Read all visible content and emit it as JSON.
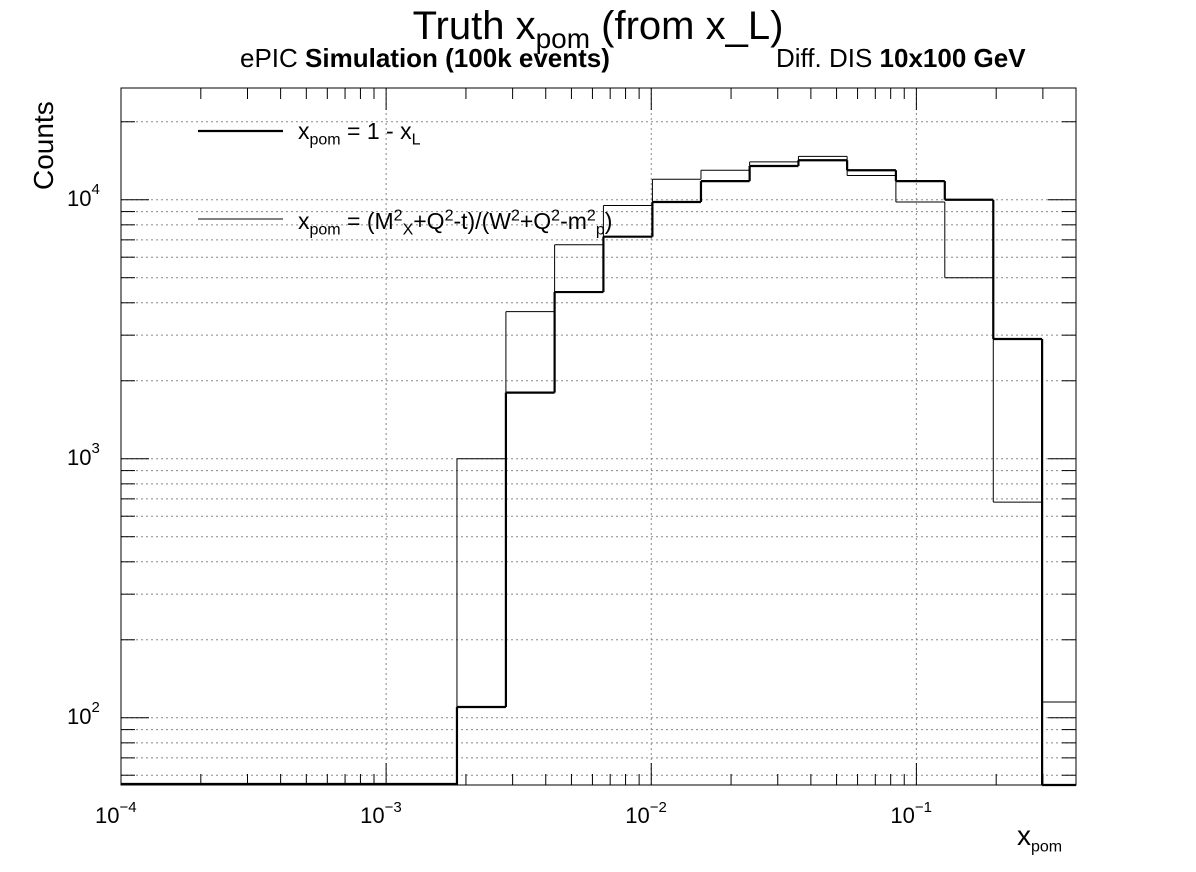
{
  "chart_data": {
    "type": "histogram",
    "title_main": "Truth x",
    "title_sub": "pom",
    "title_tail": " (from x_L)",
    "subtitle_left_normal": "ePIC ",
    "subtitle_left_bold": "Simulation (100k events)",
    "subtitle_right_normal": "Diff. DIS ",
    "subtitle_right_bold": "10x100 GeV",
    "ylabel": "Counts",
    "xlabel_main": "x",
    "xlabel_sub": "pom",
    "xscale": "log",
    "yscale": "log",
    "xlim": [
      0.0001,
      0.4
    ],
    "ylim": [
      55,
      27000
    ],
    "grid": true,
    "x_ticks": [
      {
        "base": "10",
        "exp": "−4"
      },
      {
        "base": "10",
        "exp": "−3"
      },
      {
        "base": "10",
        "exp": "−2"
      },
      {
        "base": "10",
        "exp": "−1"
      }
    ],
    "y_ticks": [
      {
        "base": "10",
        "exp": "2"
      },
      {
        "base": "10",
        "exp": "3"
      },
      {
        "base": "10",
        "exp": "4"
      }
    ],
    "bin_edges": [
      0.00185,
      0.00283,
      0.00432,
      0.0066,
      0.0101,
      0.0154,
      0.0235,
      0.0359,
      0.0548,
      0.0837,
      0.128,
      0.195,
      0.298,
      0.455
    ],
    "series": [
      {
        "name": "x_pom = 1 - x_L",
        "legend_parts": {
          "a": "x",
          "a_sub": "pom",
          "b": " = 1 - x",
          "b_sub": "L"
        },
        "line_width": "thick",
        "values": [
          110,
          1800,
          4400,
          7200,
          9800,
          11800,
          13500,
          14200,
          13000,
          11800,
          10000,
          2900,
          55
        ]
      },
      {
        "name": "x_pom = (M_X^2+Q^2-t)/(W^2+Q^2-m_p^2)",
        "legend_parts": {
          "a": "x",
          "a_sub": "pom",
          "b": " = (M",
          "b_sup": "2",
          "b_sub": "X",
          "c": "+Q",
          "c_sup": "2",
          "d": "-t)/(W",
          "d_sup": "2",
          "e": "+Q",
          "e_sup": "2",
          "f": "-m",
          "f_sup": "2",
          "f_sub": "p",
          "g": ")"
        },
        "line_width": "thin",
        "values": [
          1000,
          3700,
          6700,
          9500,
          12000,
          13000,
          14000,
          14700,
          12400,
          9800,
          5000,
          680,
          115
        ]
      }
    ]
  }
}
